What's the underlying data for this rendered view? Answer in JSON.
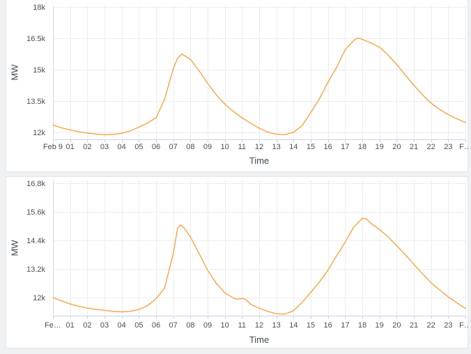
{
  "colors": {
    "line": "#f7a245",
    "grid": "#ececec",
    "y_axis_line": "#d7dade",
    "x_axis_line": "#c8cfe8",
    "tick": "#c8cfe8",
    "label": "#474e57",
    "title": "#44484d",
    "card_background": "#ffffff",
    "page_background": "#f0f1f3"
  },
  "chart_data": [
    {
      "id": "top-chart",
      "type": "line",
      "title": "",
      "xlabel": "Time",
      "ylabel": "MW",
      "grid": true,
      "legend": false,
      "xlim": [
        0,
        24
      ],
      "ylim": [
        11667,
        18067
      ],
      "x_tick_values": [
        0,
        1,
        2,
        3,
        4,
        5,
        6,
        7,
        8,
        9,
        10,
        11,
        12,
        13,
        14,
        15,
        16,
        17,
        18,
        19,
        20,
        21,
        22,
        23,
        24
      ],
      "x_tick_labels": [
        "Feb 9",
        "01",
        "02",
        "03",
        "04",
        "05",
        "06",
        "07",
        "08",
        "09",
        "10",
        "11",
        "12",
        "13",
        "14",
        "15",
        "16",
        "17",
        "18",
        "19",
        "20",
        "21",
        "22",
        "23",
        "F…"
      ],
      "y_tick_values": [
        12000,
        13500,
        15000,
        16500,
        18000
      ],
      "y_tick_labels": [
        "12k",
        "13.5k",
        "15k",
        "16.5k",
        "18k"
      ],
      "series": [
        {
          "name": "MW",
          "x": [
            0,
            0.5,
            1,
            1.5,
            2,
            2.5,
            3,
            3.5,
            4,
            4.5,
            5,
            5.5,
            6,
            6.5,
            7,
            7.25,
            7.5,
            7.75,
            8,
            8.5,
            9,
            9.5,
            10,
            10.5,
            11,
            11.5,
            12,
            12.5,
            13,
            13.5,
            14,
            14.5,
            15,
            15.5,
            16,
            16.5,
            17,
            17.5,
            17.75,
            18,
            18.5,
            19,
            19.5,
            20,
            20.5,
            21,
            21.5,
            22,
            22.5,
            23,
            23.5,
            24
          ],
          "values": [
            12350,
            12220,
            12120,
            12030,
            11970,
            11920,
            11890,
            11900,
            11960,
            12070,
            12250,
            12450,
            12700,
            13600,
            15050,
            15550,
            15750,
            15620,
            15500,
            14950,
            14350,
            13800,
            13350,
            13000,
            12700,
            12440,
            12200,
            12010,
            11910,
            11890,
            12010,
            12330,
            12950,
            13600,
            14400,
            15100,
            15950,
            16400,
            16520,
            16450,
            16280,
            16080,
            15700,
            15250,
            14750,
            14250,
            13800,
            13400,
            13100,
            12850,
            12650,
            12480
          ]
        }
      ]
    },
    {
      "id": "bottom-chart",
      "type": "line",
      "title": "",
      "xlabel": "Time",
      "ylabel": "MW",
      "grid": true,
      "legend": false,
      "xlim": [
        0,
        24
      ],
      "ylim": [
        11239,
        16917
      ],
      "x_tick_values": [
        0,
        1,
        2,
        3,
        4,
        5,
        6,
        7,
        8,
        9,
        10,
        11,
        12,
        13,
        14,
        15,
        16,
        17,
        18,
        19,
        20,
        21,
        22,
        23,
        24
      ],
      "x_tick_labels": [
        "Fe…",
        "01",
        "02",
        "03",
        "04",
        "05",
        "06",
        "07",
        "08",
        "09",
        "10",
        "11",
        "12",
        "13",
        "14",
        "15",
        "16",
        "17",
        "18",
        "19",
        "20",
        "21",
        "22",
        "23",
        "F…"
      ],
      "y_tick_values": [
        12000,
        13200,
        14400,
        15600,
        16800
      ],
      "y_tick_labels": [
        "12k",
        "13.2k",
        "14.4k",
        "15.6k",
        "16.8k"
      ],
      "series": [
        {
          "name": "MW",
          "x": [
            0,
            0.5,
            1,
            1.5,
            2,
            2.5,
            3,
            3.5,
            4,
            4.5,
            5,
            5.5,
            6,
            6.5,
            7,
            7.25,
            7.4,
            7.6,
            7.75,
            8,
            8.5,
            9,
            9.5,
            10,
            10.5,
            10.75,
            11,
            11.25,
            11.5,
            12,
            12.5,
            13,
            13.5,
            14,
            14.5,
            15,
            15.5,
            16,
            16.5,
            17,
            17.5,
            18,
            18.25,
            18.5,
            19,
            19.5,
            20,
            20.5,
            21,
            21.5,
            22,
            22.5,
            23,
            23.5,
            24
          ],
          "values": [
            12000,
            11860,
            11730,
            11630,
            11560,
            11500,
            11460,
            11420,
            11400,
            11420,
            11500,
            11660,
            11950,
            12400,
            13850,
            14900,
            15050,
            14950,
            14800,
            14550,
            13850,
            13150,
            12600,
            12200,
            11980,
            11930,
            11970,
            11900,
            11720,
            11550,
            11420,
            11320,
            11300,
            11450,
            11800,
            12220,
            12650,
            13150,
            13750,
            14320,
            14960,
            15330,
            15300,
            15120,
            14860,
            14550,
            14180,
            13800,
            13400,
            13000,
            12620,
            12320,
            12030,
            11780,
            11540
          ]
        }
      ]
    }
  ]
}
